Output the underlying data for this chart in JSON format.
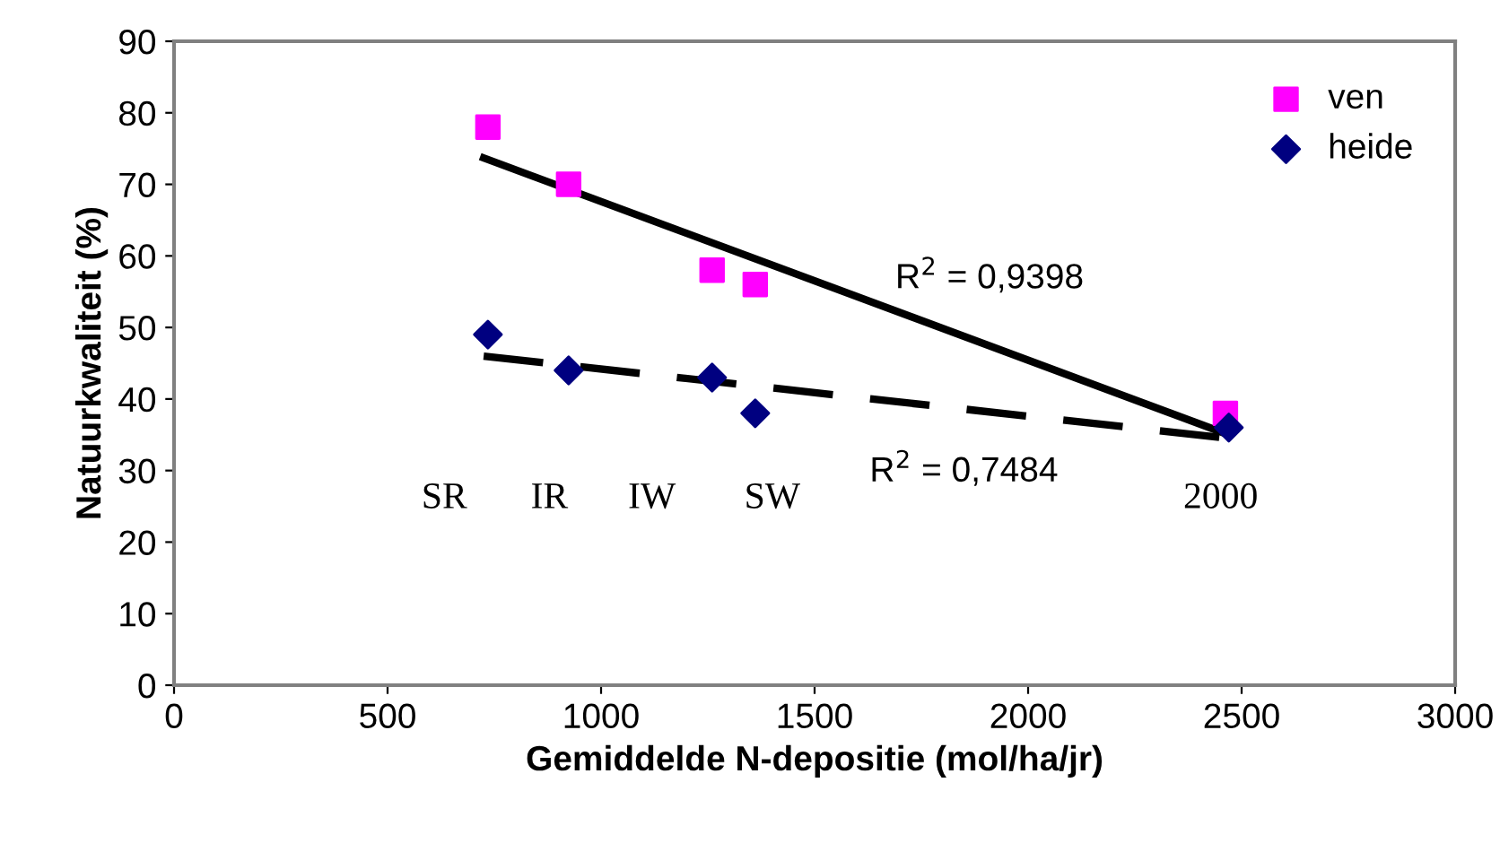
{
  "chart_data": {
    "type": "scatter",
    "xlabel": "Gemiddelde N-depositie (mol/ha/jr)",
    "ylabel": "Natuurkwaliteit (%)",
    "xlim": [
      0,
      3000
    ],
    "xticks": [
      0,
      500,
      1000,
      1500,
      2000,
      2500,
      3000
    ],
    "ylim": [
      0,
      90
    ],
    "yticks": [
      0,
      10,
      20,
      30,
      40,
      50,
      60,
      70,
      80,
      90
    ],
    "grid": false,
    "legend": "top right",
    "series": [
      {
        "name": "ven",
        "marker": "square",
        "color": "#ff00ff",
        "x": [
          735,
          924,
          1260,
          1361,
          2462
        ],
        "values": [
          78,
          70,
          58,
          56,
          38
        ]
      },
      {
        "name": "heide",
        "marker": "diamond",
        "color": "#000080",
        "x": [
          735,
          924,
          1260,
          1361,
          2470
        ],
        "values": [
          49,
          44,
          43,
          38,
          36
        ]
      },
      {
        "type": "line",
        "line_style": "solid",
        "color": "#000000",
        "x": [
          725,
          2470
        ],
        "values": [
          73.7,
          35
        ]
      },
      {
        "type": "line",
        "line_style": "dashed",
        "color": "#000000",
        "x": [
          725,
          2470
        ],
        "values": [
          46,
          34.5
        ]
      }
    ],
    "annotations": [
      "SR",
      "IR",
      "IW",
      "SW",
      "2000",
      "R$^{2}$ = 0,9398",
      "R$^{2}$ = 0,7484"
    ]
  }
}
